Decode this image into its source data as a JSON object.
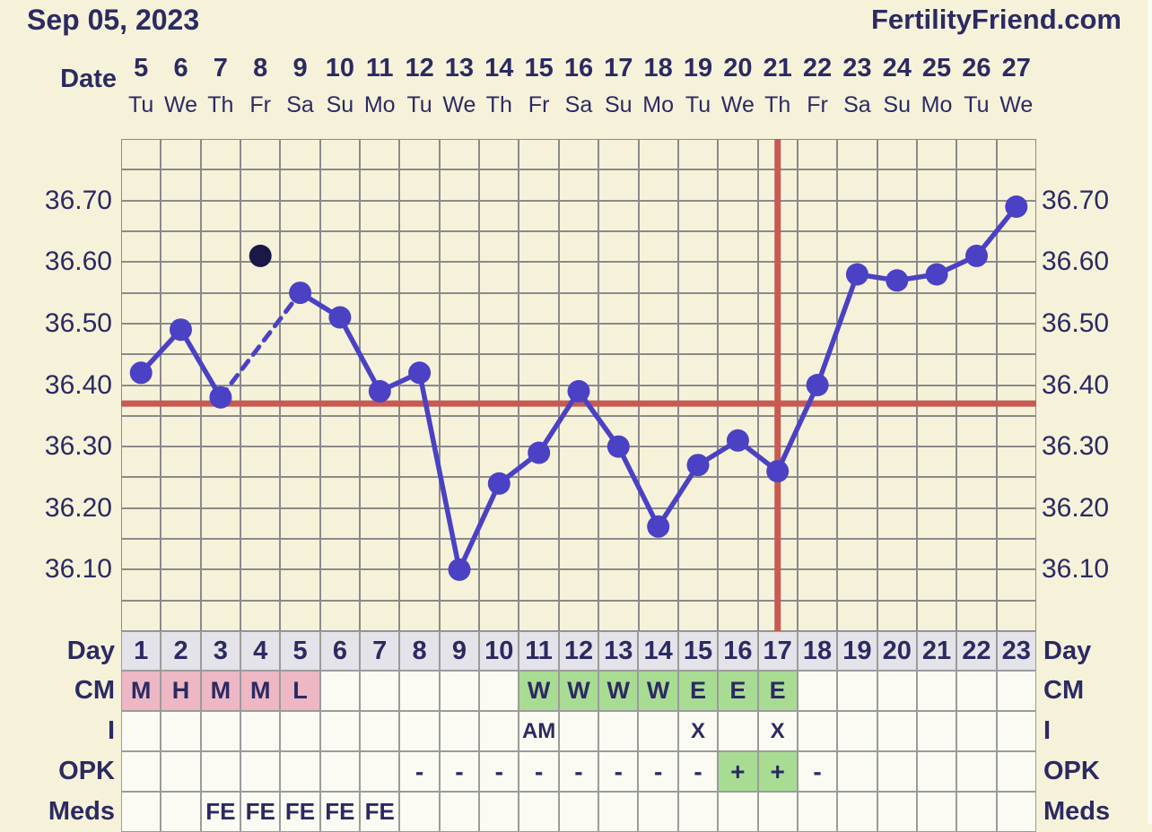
{
  "header": {
    "date": "Sep 05, 2023",
    "brand": "FertilityFriend.com"
  },
  "date_axis": {
    "label": "Date",
    "dates": [
      "5",
      "6",
      "7",
      "8",
      "9",
      "10",
      "11",
      "12",
      "13",
      "14",
      "15",
      "16",
      "17",
      "18",
      "19",
      "20",
      "21",
      "22",
      "23",
      "24",
      "25",
      "26",
      "27"
    ],
    "weekdays": [
      "Tu",
      "We",
      "Th",
      "Fr",
      "Sa",
      "Su",
      "Mo",
      "Tu",
      "We",
      "Th",
      "Fr",
      "Sa",
      "Su",
      "Mo",
      "Tu",
      "We",
      "Th",
      "Fr",
      "Sa",
      "Su",
      "Mo",
      "Tu",
      "We"
    ]
  },
  "y_axis": {
    "tick_labels": [
      "36.70",
      "36.60",
      "36.50",
      "36.40",
      "36.30",
      "36.20",
      "36.10"
    ]
  },
  "chart_data": {
    "type": "line",
    "x_days": [
      1,
      2,
      3,
      4,
      5,
      6,
      7,
      8,
      9,
      10,
      11,
      12,
      13,
      14,
      15,
      16,
      17,
      18,
      19,
      20,
      21,
      22,
      23
    ],
    "series": [
      {
        "name": "temperature",
        "values": [
          36.42,
          36.49,
          36.38,
          null,
          36.55,
          36.51,
          36.39,
          36.42,
          36.1,
          36.24,
          36.29,
          36.39,
          36.3,
          36.17,
          36.27,
          36.31,
          36.26,
          36.4,
          36.58,
          36.57,
          36.58,
          36.61,
          36.69
        ]
      }
    ],
    "discarded_point": {
      "day": 4,
      "value": 36.61
    },
    "dashed_segment_days": [
      3,
      5
    ],
    "coverline_value": 36.37,
    "ovulation_line_day": 17,
    "ylim": [
      36.0,
      36.8
    ],
    "grid_step": 0.05,
    "x_columns": 23,
    "grid": "on",
    "legend_position": "none"
  },
  "table": {
    "row_order": [
      "day",
      "cm",
      "i",
      "opk",
      "meds"
    ],
    "left_labels": {
      "day": "Day",
      "cm": "CM",
      "i": "I",
      "opk": "OPK",
      "meds": "Meds"
    },
    "right_labels": {
      "day": "Day",
      "cm": "CM",
      "i": "I",
      "opk": "OPK",
      "meds": "Meds"
    },
    "rows": {
      "day": [
        {
          "v": "1"
        },
        {
          "v": "2"
        },
        {
          "v": "3"
        },
        {
          "v": "4"
        },
        {
          "v": "5"
        },
        {
          "v": "6"
        },
        {
          "v": "7"
        },
        {
          "v": "8"
        },
        {
          "v": "9"
        },
        {
          "v": "10"
        },
        {
          "v": "11"
        },
        {
          "v": "12"
        },
        {
          "v": "13"
        },
        {
          "v": "14"
        },
        {
          "v": "15"
        },
        {
          "v": "16"
        },
        {
          "v": "17"
        },
        {
          "v": "18"
        },
        {
          "v": "19"
        },
        {
          "v": "20"
        },
        {
          "v": "21"
        },
        {
          "v": "22"
        },
        {
          "v": "23"
        }
      ],
      "cm": [
        {
          "v": "M",
          "bg": "pink"
        },
        {
          "v": "H",
          "bg": "pink"
        },
        {
          "v": "M",
          "bg": "pink"
        },
        {
          "v": "M",
          "bg": "pink"
        },
        {
          "v": "L",
          "bg": "pink"
        },
        {},
        {},
        {},
        {},
        {},
        {
          "v": "W",
          "bg": "green"
        },
        {
          "v": "W",
          "bg": "green"
        },
        {
          "v": "W",
          "bg": "green"
        },
        {
          "v": "W",
          "bg": "green"
        },
        {
          "v": "E",
          "bg": "green"
        },
        {
          "v": "E",
          "bg": "green"
        },
        {
          "v": "E",
          "bg": "green"
        },
        {},
        {},
        {},
        {},
        {},
        {}
      ],
      "i": [
        {},
        {},
        {},
        {},
        {},
        {},
        {},
        {},
        {},
        {},
        {
          "v": "AM"
        },
        {},
        {},
        {},
        {
          "v": "X"
        },
        {},
        {
          "v": "X"
        },
        {},
        {},
        {},
        {},
        {},
        {}
      ],
      "opk": [
        {},
        {},
        {},
        {},
        {},
        {},
        {},
        {
          "v": "-"
        },
        {
          "v": "-"
        },
        {
          "v": "-"
        },
        {
          "v": "-"
        },
        {
          "v": "-"
        },
        {
          "v": "-"
        },
        {
          "v": "-"
        },
        {
          "v": "-"
        },
        {
          "v": "+",
          "bg": "green"
        },
        {
          "v": "+",
          "bg": "green"
        },
        {
          "v": "-"
        },
        {},
        {},
        {},
        {},
        {}
      ],
      "meds": [
        {},
        {},
        {
          "v": "FE"
        },
        {
          "v": "FE"
        },
        {
          "v": "FE"
        },
        {
          "v": "FE"
        },
        {
          "v": "FE"
        },
        {},
        {},
        {},
        {},
        {},
        {},
        {},
        {},
        {},
        {},
        {},
        {},
        {},
        {},
        {},
        {}
      ]
    }
  },
  "colors": {
    "background": "#f6f2da",
    "text_navy": "#2b2a62",
    "line_purple": "#4b41c4",
    "discarded_dot": "#1b1847",
    "red_line": "#c75a52",
    "grid_gray": "#8a8a8a",
    "day_row_bg": "#e3e3e9",
    "cell_bg": "#fbfbf3",
    "cm_pink": "#edb7c4",
    "positive_green": "#a9dc93"
  }
}
